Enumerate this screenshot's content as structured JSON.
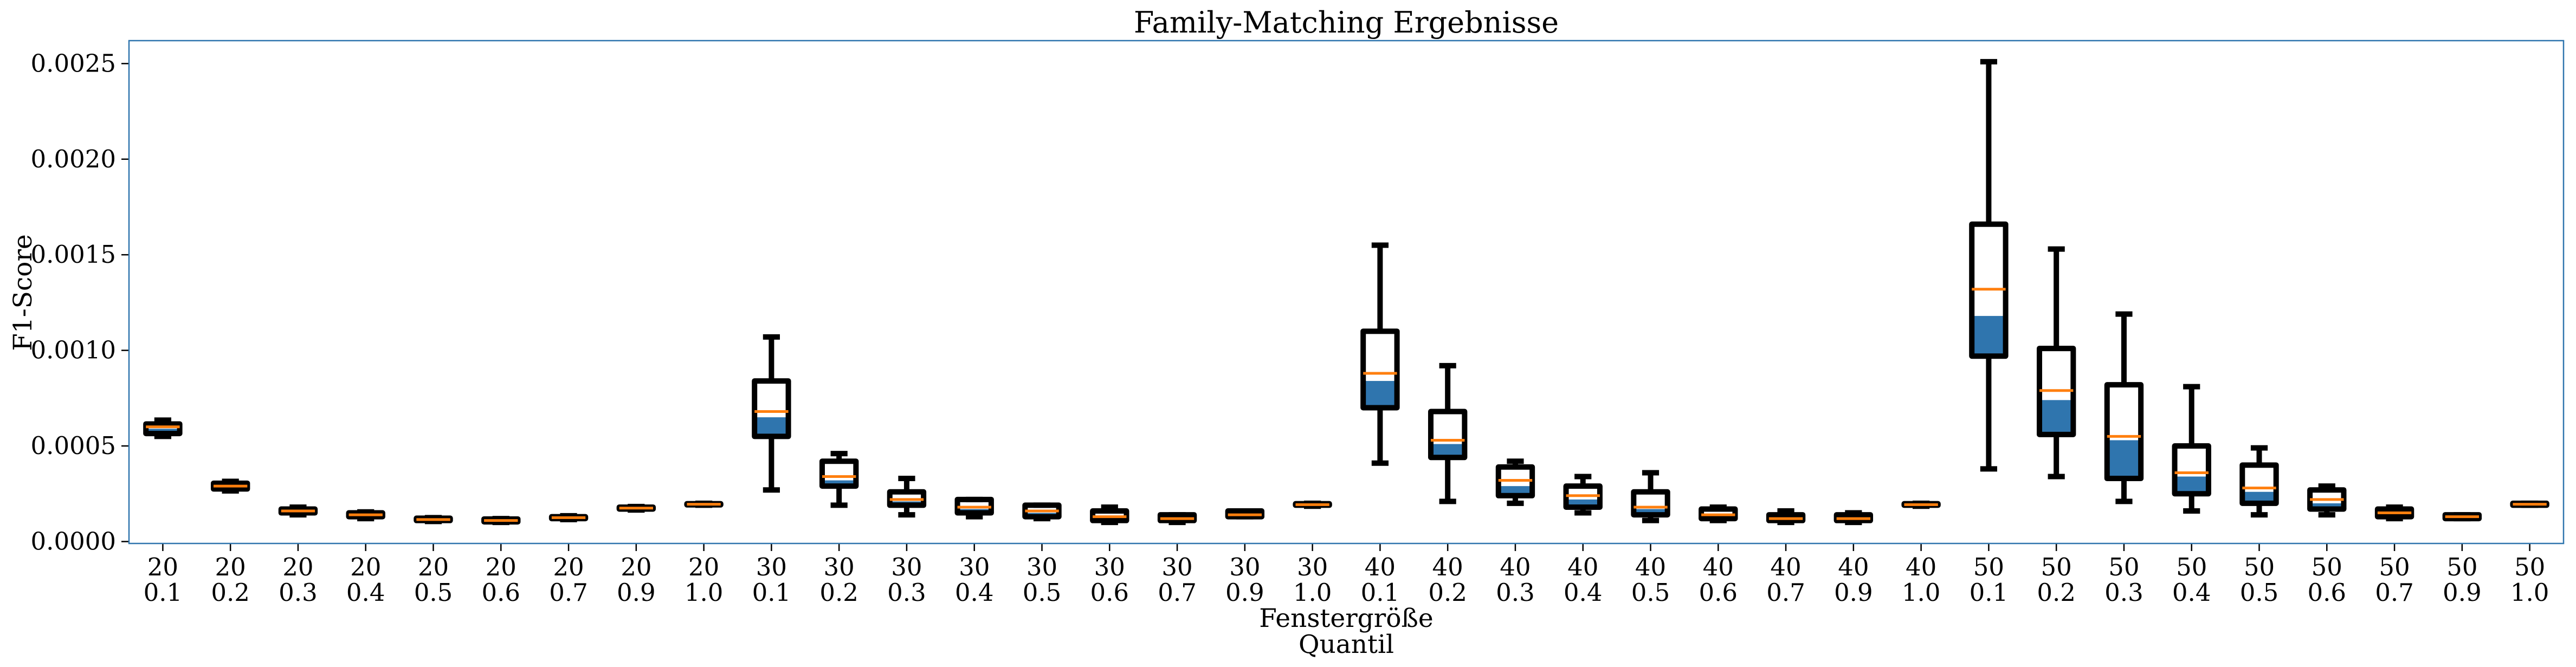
{
  "chart_data": {
    "type": "boxplot",
    "title": "Family-Matching Ergebnisse",
    "xlabel_line1": "Fenstergröße",
    "xlabel_line2": "Quantil",
    "ylabel": "F1-Score",
    "ylim": [
      -1e-05,
      0.00262
    ],
    "yticks": [
      "0.0000",
      "0.0005",
      "0.0010",
      "0.0015",
      "0.0020",
      "0.0025"
    ],
    "ytick_values": [
      0.0,
      0.0005,
      0.001,
      0.0015,
      0.002,
      0.0025
    ],
    "grid": false,
    "colors": {
      "median": "#ff7f0e",
      "fill": "#2f75ae",
      "box": "#000000",
      "frame": "#2f75ae"
    },
    "categories": [
      {
        "line1": "20",
        "line2": "0.1"
      },
      {
        "line1": "20",
        "line2": "0.2"
      },
      {
        "line1": "20",
        "line2": "0.3"
      },
      {
        "line1": "20",
        "line2": "0.4"
      },
      {
        "line1": "20",
        "line2": "0.5"
      },
      {
        "line1": "20",
        "line2": "0.6"
      },
      {
        "line1": "20",
        "line2": "0.7"
      },
      {
        "line1": "20",
        "line2": "0.9"
      },
      {
        "line1": "20",
        "line2": "1.0"
      },
      {
        "line1": "30",
        "line2": "0.1"
      },
      {
        "line1": "30",
        "line2": "0.2"
      },
      {
        "line1": "30",
        "line2": "0.3"
      },
      {
        "line1": "30",
        "line2": "0.4"
      },
      {
        "line1": "30",
        "line2": "0.5"
      },
      {
        "line1": "30",
        "line2": "0.6"
      },
      {
        "line1": "30",
        "line2": "0.7"
      },
      {
        "line1": "30",
        "line2": "0.9"
      },
      {
        "line1": "30",
        "line2": "1.0"
      },
      {
        "line1": "40",
        "line2": "0.1"
      },
      {
        "line1": "40",
        "line2": "0.2"
      },
      {
        "line1": "40",
        "line2": "0.3"
      },
      {
        "line1": "40",
        "line2": "0.4"
      },
      {
        "line1": "40",
        "line2": "0.5"
      },
      {
        "line1": "40",
        "line2": "0.6"
      },
      {
        "line1": "40",
        "line2": "0.7"
      },
      {
        "line1": "40",
        "line2": "0.9"
      },
      {
        "line1": "40",
        "line2": "1.0"
      },
      {
        "line1": "50",
        "line2": "0.1"
      },
      {
        "line1": "50",
        "line2": "0.2"
      },
      {
        "line1": "50",
        "line2": "0.3"
      },
      {
        "line1": "50",
        "line2": "0.4"
      },
      {
        "line1": "50",
        "line2": "0.5"
      },
      {
        "line1": "50",
        "line2": "0.6"
      },
      {
        "line1": "50",
        "line2": "0.7"
      },
      {
        "line1": "50",
        "line2": "0.9"
      },
      {
        "line1": "50",
        "line2": "1.0"
      }
    ],
    "boxes": [
      {
        "wlo": 0.00055,
        "q1": 0.000565,
        "med": 0.0006,
        "q3": 0.000615,
        "whi": 0.000635,
        "fill": 0.00059
      },
      {
        "wlo": 0.000265,
        "q1": 0.000275,
        "med": 0.00029,
        "q3": 0.000305,
        "whi": 0.000315,
        "fill": 0.000285
      },
      {
        "wlo": 0.00014,
        "q1": 0.00015,
        "med": 0.00016,
        "q3": 0.00017,
        "whi": 0.00018,
        "fill": 0.000155
      },
      {
        "wlo": 0.00012,
        "q1": 0.00013,
        "med": 0.00014,
        "q3": 0.00015,
        "whi": 0.000155,
        "fill": 0.000135
      },
      {
        "wlo": 0.000105,
        "q1": 0.00011,
        "med": 0.000115,
        "q3": 0.000122,
        "whi": 0.000125,
        "fill": 0.000112
      },
      {
        "wlo": 0.0001,
        "q1": 0.000103,
        "med": 0.00011,
        "q3": 0.000118,
        "whi": 0.00012,
        "fill": 0.000106
      },
      {
        "wlo": 0.000115,
        "q1": 0.00012,
        "med": 0.000125,
        "q3": 0.00013,
        "whi": 0.000135,
        "fill": 0.000122
      },
      {
        "wlo": 0.000165,
        "q1": 0.00017,
        "med": 0.000175,
        "q3": 0.00018,
        "whi": 0.000183,
        "fill": 0.000172
      },
      {
        "wlo": 0.00019,
        "q1": 0.000192,
        "med": 0.000195,
        "q3": 0.000198,
        "whi": 0.0002,
        "fill": 0.000193
      },
      {
        "wlo": 0.00027,
        "q1": 0.00055,
        "med": 0.00068,
        "q3": 0.00084,
        "whi": 0.00107,
        "fill": 0.00065
      },
      {
        "wlo": 0.00019,
        "q1": 0.00029,
        "med": 0.00034,
        "q3": 0.00042,
        "whi": 0.00046,
        "fill": 0.00032
      },
      {
        "wlo": 0.00014,
        "q1": 0.00019,
        "med": 0.00022,
        "q3": 0.00026,
        "whi": 0.00033,
        "fill": 0.00021
      },
      {
        "wlo": 0.00013,
        "q1": 0.00015,
        "med": 0.00018,
        "q3": 0.00022,
        "whi": 0.00022,
        "fill": 0.00017
      },
      {
        "wlo": 0.00012,
        "q1": 0.00013,
        "med": 0.00016,
        "q3": 0.00019,
        "whi": 0.00019,
        "fill": 0.00015
      },
      {
        "wlo": 0.0001,
        "q1": 0.00011,
        "med": 0.00013,
        "q3": 0.00016,
        "whi": 0.00018,
        "fill": 0.00012
      },
      {
        "wlo": 0.0001,
        "q1": 0.00011,
        "med": 0.00012,
        "q3": 0.00014,
        "whi": 0.00014,
        "fill": 0.000115
      },
      {
        "wlo": 0.00013,
        "q1": 0.00013,
        "med": 0.00014,
        "q3": 0.00016,
        "whi": 0.00016,
        "fill": 0.000135
      },
      {
        "wlo": 0.000185,
        "q1": 0.00019,
        "med": 0.000193,
        "q3": 0.000198,
        "whi": 0.0002,
        "fill": 0.000191
      },
      {
        "wlo": 0.00041,
        "q1": 0.0007,
        "med": 0.00088,
        "q3": 0.0011,
        "whi": 0.00155,
        "fill": 0.00084
      },
      {
        "wlo": 0.00021,
        "q1": 0.00044,
        "med": 0.00053,
        "q3": 0.00068,
        "whi": 0.00092,
        "fill": 0.00051
      },
      {
        "wlo": 0.0002,
        "q1": 0.00024,
        "med": 0.00032,
        "q3": 0.00039,
        "whi": 0.00042,
        "fill": 0.00029
      },
      {
        "wlo": 0.00015,
        "q1": 0.00018,
        "med": 0.00024,
        "q3": 0.00029,
        "whi": 0.00034,
        "fill": 0.00022
      },
      {
        "wlo": 0.00011,
        "q1": 0.00014,
        "med": 0.00018,
        "q3": 0.00026,
        "whi": 0.00036,
        "fill": 0.00017
      },
      {
        "wlo": 0.00011,
        "q1": 0.00012,
        "med": 0.00014,
        "q3": 0.00017,
        "whi": 0.00018,
        "fill": 0.00013
      },
      {
        "wlo": 0.0001,
        "q1": 0.00011,
        "med": 0.00012,
        "q3": 0.00014,
        "whi": 0.00016,
        "fill": 0.000115
      },
      {
        "wlo": 0.0001,
        "q1": 0.00011,
        "med": 0.00012,
        "q3": 0.00014,
        "whi": 0.00015,
        "fill": 0.000115
      },
      {
        "wlo": 0.000185,
        "q1": 0.00019,
        "med": 0.000193,
        "q3": 0.000198,
        "whi": 0.0002,
        "fill": 0.000191
      },
      {
        "wlo": 0.00038,
        "q1": 0.00097,
        "med": 0.00132,
        "q3": 0.00166,
        "whi": 0.00251,
        "fill": 0.00118
      },
      {
        "wlo": 0.00034,
        "q1": 0.00056,
        "med": 0.00079,
        "q3": 0.00101,
        "whi": 0.00153,
        "fill": 0.00074
      },
      {
        "wlo": 0.00021,
        "q1": 0.00033,
        "med": 0.00055,
        "q3": 0.00082,
        "whi": 0.00119,
        "fill": 0.00053
      },
      {
        "wlo": 0.00016,
        "q1": 0.00025,
        "med": 0.00036,
        "q3": 0.0005,
        "whi": 0.00081,
        "fill": 0.00034
      },
      {
        "wlo": 0.00014,
        "q1": 0.0002,
        "med": 0.00028,
        "q3": 0.0004,
        "whi": 0.00049,
        "fill": 0.00026
      },
      {
        "wlo": 0.00014,
        "q1": 0.00017,
        "med": 0.00022,
        "q3": 0.00027,
        "whi": 0.00029,
        "fill": 0.0002
      },
      {
        "wlo": 0.00012,
        "q1": 0.00013,
        "med": 0.00015,
        "q3": 0.00017,
        "whi": 0.00018,
        "fill": 0.00014
      },
      {
        "wlo": 0.00012,
        "q1": 0.00012,
        "med": 0.00013,
        "q3": 0.00014,
        "whi": 0.00014,
        "fill": 0.000125
      },
      {
        "wlo": 0.00019,
        "q1": 0.00019,
        "med": 0.000195,
        "q3": 0.0002,
        "whi": 0.0002,
        "fill": 0.000193
      }
    ]
  }
}
